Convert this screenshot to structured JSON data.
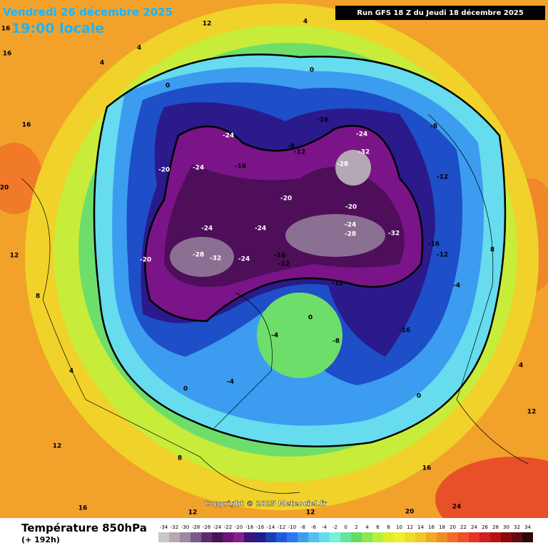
{
  "header": {
    "date": "Vendredi 26 décembre 2025",
    "time": "19:00 locale",
    "run": "Run GFS 18 Z du Jeudi 18 décembre 2025"
  },
  "map": {
    "copyright": "Copyright © 2025 Meteociel.fr",
    "labels": [
      "16",
      "16",
      "12",
      "4",
      "4",
      "0",
      "4",
      "0",
      "-16",
      "-24",
      "-32",
      "-28",
      "-24",
      "-20",
      "-24",
      "-16",
      "-8",
      "-12",
      "-20",
      "-24",
      "-24",
      "-28",
      "-32",
      "-24",
      "-20",
      "-16",
      "-12",
      "-12",
      "-20",
      "-24",
      "-28",
      "-32",
      "-16",
      "-8",
      "-12",
      "-16",
      "-12",
      "-4",
      "8",
      "12",
      "16",
      "20",
      "24",
      "0",
      "-4",
      "-8",
      "-4",
      "0",
      "4",
      "8",
      "12",
      "16",
      "12",
      "12",
      "20",
      "16",
      "12",
      "8",
      "4",
      "0"
    ]
  },
  "footer": {
    "title": "Température 850hPa",
    "subtitle": "(+ 192h)"
  },
  "legend": {
    "ticks": [
      -34,
      -32,
      -30,
      -28,
      -26,
      -24,
      -22,
      -20,
      -18,
      -16,
      -14,
      -12,
      -10,
      -8,
      -6,
      -4,
      -2,
      0,
      2,
      4,
      6,
      8,
      10,
      12,
      14,
      16,
      18,
      20,
      22,
      24,
      26,
      28,
      30,
      32,
      34
    ],
    "colors": [
      "#c8c8c8",
      "#b4a8b4",
      "#9c8aa0",
      "#7a5a86",
      "#5e2a6e",
      "#4a1058",
      "#6a1478",
      "#8a1c90",
      "#3a1478",
      "#1e1e8c",
      "#1e3cb4",
      "#1e5adc",
      "#2878f0",
      "#3c9cf0",
      "#50c0f0",
      "#64dcf0",
      "#78f0dc",
      "#64e6a0",
      "#64dc64",
      "#8ce650",
      "#b4f03c",
      "#dcf028",
      "#f0f028",
      "#f0dc28",
      "#f0c828",
      "#f0aa28",
      "#f08c28",
      "#f06e28",
      "#f05028",
      "#e63228",
      "#d21e1e",
      "#b41414",
      "#8c0a0a",
      "#640a0a",
      "#280a0a"
    ]
  }
}
